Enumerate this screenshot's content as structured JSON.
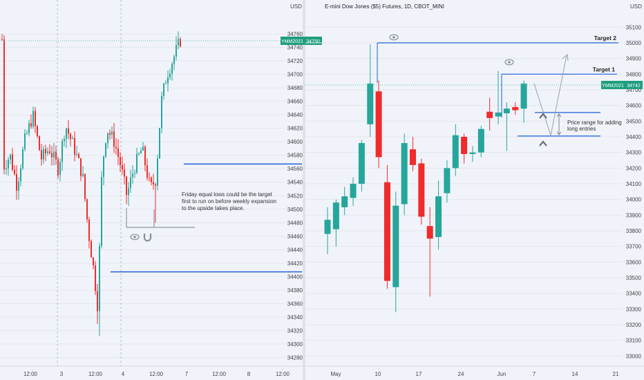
{
  "colors": {
    "bull": "#26a69a",
    "bear": "#ef2b2b",
    "level_line": "#1e5fd6",
    "price_line": "#5fbfa8",
    "badge_bg": "#1e9e7e",
    "axis_text": "#444444",
    "grid": "#e4e7ee",
    "panel_bg": "#f0f3fa"
  },
  "icons": [
    "eye-icon",
    "magnet-icon",
    "chevron-up-icon"
  ],
  "chart_data": [
    {
      "type": "candlestick",
      "title": "",
      "symbol": "YMM2021",
      "last_price_label": "34750",
      "y_axis_unit": "USD",
      "y_ticks": [
        34280,
        34300,
        34320,
        34340,
        34360,
        34380,
        34400,
        34420,
        34440,
        34460,
        34480,
        34500,
        34520,
        34540,
        34560,
        34580,
        34600,
        34620,
        34640,
        34660,
        34680,
        34700,
        34720,
        34740,
        34760
      ],
      "x_ticks": [
        "12:00",
        "3",
        "12:00",
        "4",
        "12:00",
        "7",
        "12:00",
        "8",
        "12:00"
      ],
      "ylim": [
        34264,
        34782
      ],
      "levels": [
        34567,
        34407
      ],
      "equal_lows_level": 34473,
      "annotation": [
        "Friday equal lows could be the target",
        "first to run on before weekly expansion",
        "to the upside takes place."
      ]
    },
    {
      "type": "candlestick",
      "title": "E-mini Dow Jones ($5) Futures, 1D, CBOT_MINI",
      "symbol": "YMM2021",
      "last_price_label": "34742",
      "y_axis_unit": "USD",
      "y_ticks": [
        33000,
        33100,
        33200,
        33300,
        33400,
        33500,
        33600,
        33700,
        33800,
        33900,
        34000,
        34100,
        34200,
        34300,
        34400,
        34500,
        34600,
        34700,
        34800,
        34900,
        35000,
        35100
      ],
      "x_ticks": [
        "May",
        "10",
        "17",
        "24",
        "Jun",
        "7",
        "14",
        "21"
      ],
      "ylim": [
        32960,
        35160
      ],
      "targets": [
        {
          "label": "Target 2",
          "value": 35000
        },
        {
          "label": "Target 1",
          "value": 34800
        }
      ],
      "range_levels": [
        34555,
        34405
      ],
      "range_label": [
        "Price range for adding",
        "long entries"
      ],
      "candles": [
        {
          "date": "May 3",
          "o": 33780,
          "h": 33950,
          "l": 33650,
          "c": 33870
        },
        {
          "date": "May 4",
          "o": 33810,
          "h": 34000,
          "l": 33700,
          "c": 33980
        },
        {
          "date": "May 5",
          "o": 33950,
          "h": 34080,
          "l": 33900,
          "c": 34020
        },
        {
          "date": "May 6",
          "o": 34010,
          "h": 34140,
          "l": 33960,
          "c": 34100
        },
        {
          "date": "May 7",
          "o": 34100,
          "h": 34380,
          "l": 34050,
          "c": 34360
        },
        {
          "date": "May 10",
          "o": 34480,
          "h": 34990,
          "l": 34400,
          "c": 34740
        },
        {
          "date": "May 11",
          "o": 34690,
          "h": 34760,
          "l": 34200,
          "c": 34270
        },
        {
          "date": "May 12",
          "o": 34110,
          "h": 34220,
          "l": 33430,
          "c": 33480
        },
        {
          "date": "May 13",
          "o": 33440,
          "h": 34050,
          "l": 33280,
          "c": 33960
        },
        {
          "date": "May 14",
          "o": 33970,
          "h": 34420,
          "l": 33900,
          "c": 34360
        },
        {
          "date": "May 17",
          "o": 34320,
          "h": 34400,
          "l": 34180,
          "c": 34220
        },
        {
          "date": "May 18",
          "o": 34230,
          "h": 34260,
          "l": 33840,
          "c": 33890
        },
        {
          "date": "May 19",
          "o": 33830,
          "h": 33950,
          "l": 33380,
          "c": 33750
        },
        {
          "date": "May 20",
          "o": 33760,
          "h": 34120,
          "l": 33680,
          "c": 34020
        },
        {
          "date": "May 21",
          "o": 34040,
          "h": 34250,
          "l": 33980,
          "c": 34200
        },
        {
          "date": "May 24",
          "o": 34200,
          "h": 34480,
          "l": 34150,
          "c": 34410
        },
        {
          "date": "May 25",
          "o": 34400,
          "h": 34420,
          "l": 34230,
          "c": 34290
        },
        {
          "date": "May 26",
          "o": 34290,
          "h": 34340,
          "l": 34240,
          "c": 34300
        },
        {
          "date": "May 27",
          "o": 34300,
          "h": 34470,
          "l": 34270,
          "c": 34450
        },
        {
          "date": "Jun 1",
          "o": 34560,
          "h": 34650,
          "l": 34440,
          "c": 34520
        },
        {
          "date": "Jun 2",
          "o": 34530,
          "h": 34820,
          "l": 34480,
          "c": 34555
        },
        {
          "date": "Jun 3",
          "o": 34550,
          "h": 34620,
          "l": 34310,
          "c": 34580
        },
        {
          "date": "Jun 4",
          "o": 34590,
          "h": 34620,
          "l": 34540,
          "c": 34570
        },
        {
          "date": "Jun 7",
          "o": 34580,
          "h": 34760,
          "l": 34490,
          "c": 34740
        }
      ]
    }
  ]
}
